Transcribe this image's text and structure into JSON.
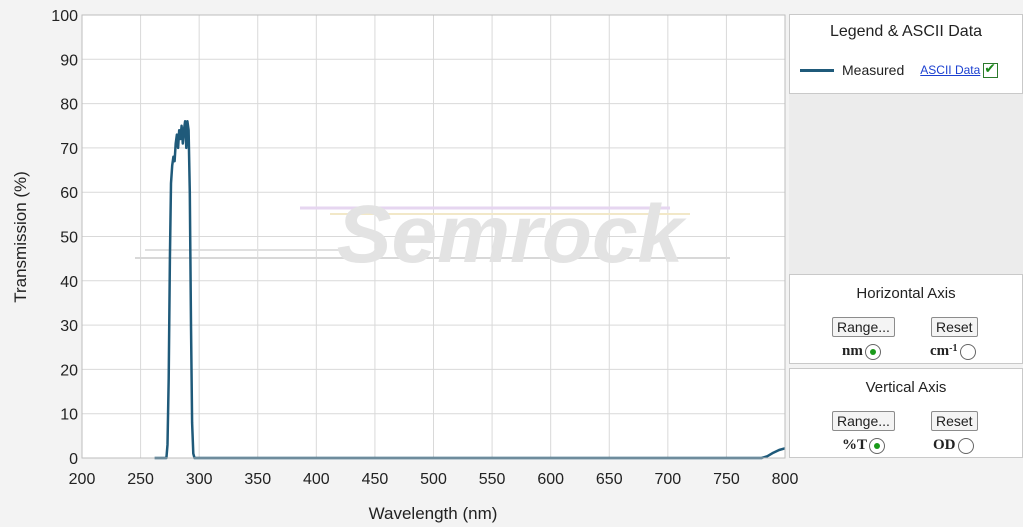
{
  "chart_data": {
    "type": "line",
    "title": "",
    "xlabel": "Wavelength (nm)",
    "ylabel": "Transmission (%)",
    "xlim": [
      200,
      800
    ],
    "ylim": [
      0,
      100
    ],
    "x_ticks": [
      "200",
      "250",
      "300",
      "350",
      "400",
      "450",
      "500",
      "550",
      "600",
      "650",
      "700",
      "750",
      "800"
    ],
    "y_ticks": [
      "0",
      "10",
      "20",
      "30",
      "40",
      "50",
      "60",
      "70",
      "80",
      "90",
      "100"
    ],
    "grid": true,
    "series": [
      {
        "name": "Measured",
        "color": "#1f5a7a",
        "x": [
          262,
          272,
          273,
          274,
          275,
          276,
          277,
          278,
          279,
          280,
          281,
          282,
          283,
          284,
          285,
          286,
          287,
          288,
          289,
          290,
          291,
          292,
          293,
          294,
          295,
          296,
          297,
          298,
          300,
          320,
          400,
          500,
          600,
          700,
          780,
          785,
          790,
          795,
          800
        ],
        "y": [
          0,
          0,
          3,
          18,
          45,
          62,
          66,
          68,
          67,
          71,
          73,
          70,
          74,
          72,
          75,
          71,
          74,
          76,
          70,
          76,
          74,
          60,
          30,
          8,
          1,
          0,
          0,
          0,
          0,
          0,
          0,
          0,
          0,
          0,
          0,
          0.4,
          1.2,
          1.8,
          2.2
        ]
      }
    ]
  },
  "watermark": "Semrock",
  "legend": {
    "title": "Legend & ASCII Data",
    "entry": "Measured",
    "ascii_link": "ASCII Data",
    "ascii_checked": true
  },
  "horizontal_axis": {
    "title": "Horizontal Axis",
    "range_button": "Range...",
    "reset_button": "Reset",
    "unit_nm": "nm",
    "unit_cm_base": "cm",
    "unit_cm_sup": "-1",
    "selected": "nm"
  },
  "vertical_axis": {
    "title": "Vertical  Axis",
    "range_button": "Range...",
    "reset_button": "Reset",
    "unit_t": "%T",
    "unit_od": "OD",
    "selected": "%T"
  }
}
